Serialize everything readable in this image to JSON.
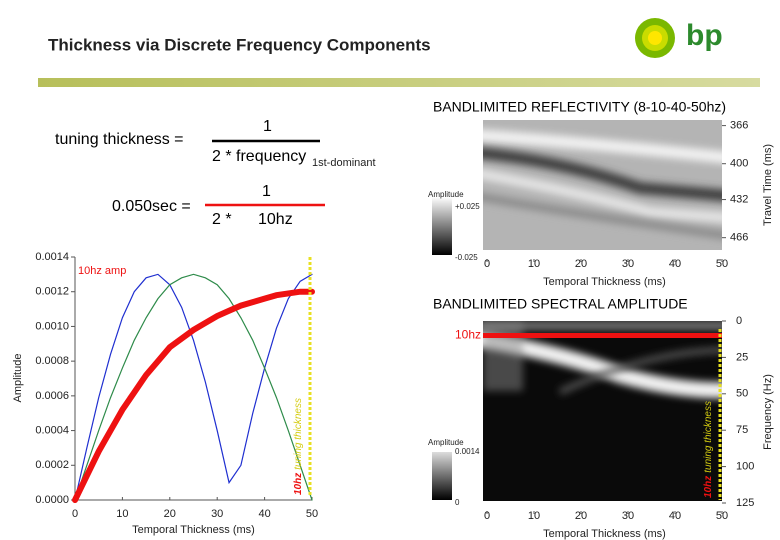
{
  "header": {
    "title": "Thickness via Discrete Frequency Components",
    "logo_text": "bp"
  },
  "equations": {
    "line1": {
      "left": "tuning thickness =",
      "numerator": "1",
      "denominator": "2 * frequency",
      "subscript": "1st-dominant"
    },
    "line2": {
      "left": "0.050sec =",
      "numerator": "1",
      "denominator_left": "2 *",
      "denominator_right": "10hz"
    }
  },
  "chart_data": [
    {
      "type": "line",
      "x_label": "Temporal Thickness (ms)",
      "y_label": "Amplitude",
      "x": [
        0,
        2.5,
        5,
        7.5,
        10,
        12.5,
        15,
        17.5,
        20,
        22.5,
        25,
        27.5,
        30,
        32.5,
        35,
        37.5,
        40,
        42.5,
        45,
        47.5,
        50
      ],
      "series": [
        {
          "color": "#1f2fd0",
          "values": [
            0,
            0.0003,
            0.00059,
            0.00084,
            0.00105,
            0.0012,
            0.00128,
            0.0013,
            0.00124,
            0.00111,
            0.00092,
            0.00068,
            0.0004,
            0.0001,
            0.0002,
            0.0005,
            0.00076,
            0.00099,
            0.00116,
            0.00126,
            0.0013
          ]
        },
        {
          "color": "#2e8b4a",
          "values": [
            0,
            0.0002,
            0.0004,
            0.00059,
            0.00076,
            0.00092,
            0.00105,
            0.00116,
            0.00124,
            0.00128,
            0.0013,
            0.00128,
            0.00124,
            0.00116,
            0.00105,
            0.00092,
            0.00076,
            0.00059,
            0.0004,
            0.0002,
            0
          ]
        },
        {
          "name": "10hz amp",
          "color": "#ee1111",
          "values": [
            0,
            0.00014,
            0.00028,
            0.0004,
            0.00052,
            0.00062,
            0.00072,
            0.0008,
            0.00088,
            0.00093,
            0.00098,
            0.00102,
            0.00106,
            0.00109,
            0.00112,
            0.00114,
            0.00116,
            0.00118,
            0.00119,
            0.0012,
            0.0012
          ]
        }
      ],
      "xlim": [
        0,
        50
      ],
      "xticks": [
        0,
        10,
        20,
        30,
        40,
        50
      ],
      "ylim": [
        0,
        0.0014
      ],
      "yticks": [
        {
          "value": 0,
          "label": "0.0000"
        },
        0.0002,
        0.0004,
        0.0006,
        0.0008,
        {
          "value": 0.001,
          "label": "0.0010"
        },
        0.0012,
        0.0014
      ],
      "marker_line": {
        "x": 50,
        "label": "10hz",
        "label2": "tuning thickness"
      }
    },
    {
      "type": "image",
      "title": "BANDLIMITED REFLECTIVITY (8-10-40-50hz)",
      "x_label": "Temporal Thickness (ms)",
      "y_label": "Travel Time (ms)",
      "xlim": [
        0,
        50
      ],
      "xticks": [
        0,
        10,
        20,
        30,
        40,
        50
      ],
      "ylim": [
        361,
        477
      ],
      "yticks": [
        366,
        400,
        432,
        466
      ],
      "y_inverted": true,
      "colorbar": {
        "label": "Amplitude",
        "ticks": [
          {
            "value": 0.025,
            "label": "+0.025"
          },
          -0.025
        ]
      }
    },
    {
      "type": "image",
      "title": "BANDLIMITED SPECTRAL AMPLITUDE",
      "x_label": "Temporal Thickness (ms)",
      "y_label": "Frequency (Hz)",
      "xlim": [
        0,
        50
      ],
      "xticks": [
        0,
        10,
        20,
        30,
        40,
        50
      ],
      "ylim": [
        0,
        125
      ],
      "yticks": [
        0,
        25,
        50,
        75,
        100,
        125
      ],
      "y_inverted": true,
      "colorbar": {
        "label": "Amplitude",
        "ticks": [
          0.0014,
          0
        ]
      },
      "highlight_line": {
        "y": 10,
        "label": "10hz"
      },
      "marker_line": {
        "x": 50,
        "label": "10hz",
        "label2": "tuning thickness"
      }
    }
  ]
}
